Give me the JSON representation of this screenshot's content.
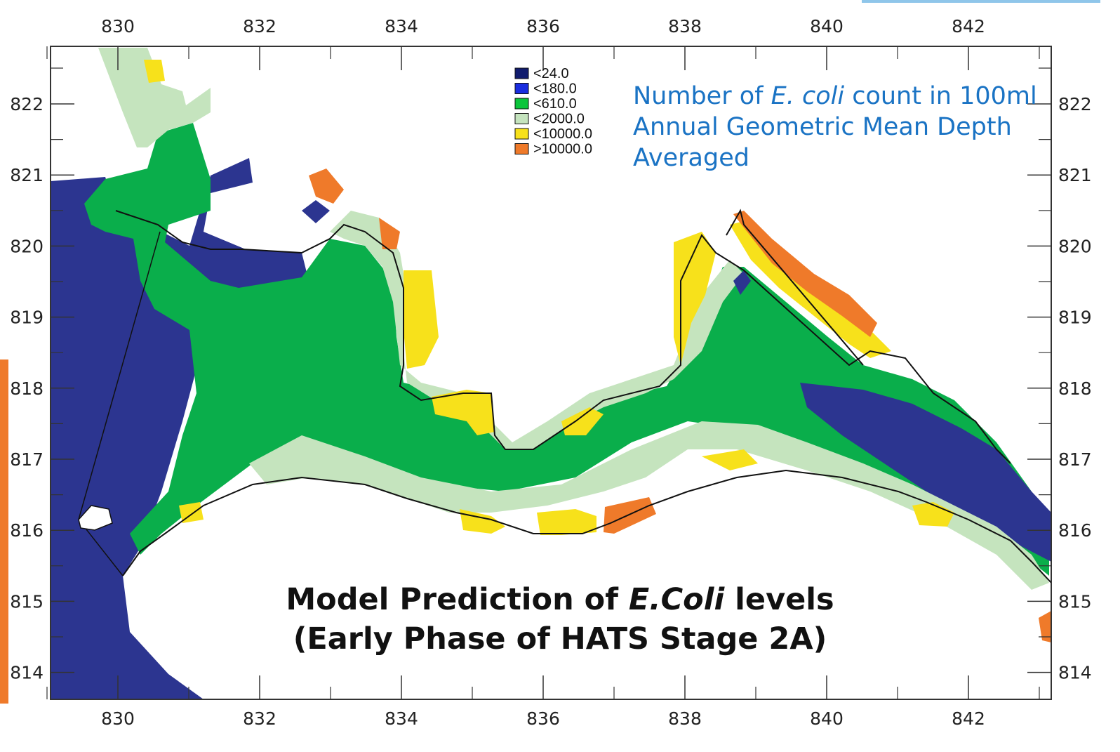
{
  "colors": {
    "deep_blue": "#2c3590",
    "green": "#0aae4b",
    "light_green": "#c5e4be",
    "yellow": "#f7e11b",
    "orange": "#ef7a2a",
    "note_blue": "#1a73c4"
  },
  "axes": {
    "x_ticks": [
      "830",
      "832",
      "834",
      "836",
      "838",
      "840",
      "842"
    ],
    "y_ticks": [
      "822",
      "821",
      "820",
      "819",
      "818",
      "817",
      "816",
      "815",
      "814"
    ]
  },
  "legend": [
    {
      "label": "<24.0",
      "color": "#111c6e"
    },
    {
      "label": "<180.0",
      "color": "#1a2de0"
    },
    {
      "label": "<610.0",
      "color": "#0bc53b"
    },
    {
      "label": "<2000.0",
      "color": "#c5e4be"
    },
    {
      "label": "<10000.0",
      "color": "#f7e11b"
    },
    {
      "label": ">10000.0",
      "color": "#ef7a2a"
    }
  ],
  "note": {
    "line1_prefix": "Number of ",
    "line1_italic": "E. coli",
    "line1_suffix": " count in 100ml",
    "line2": "Annual Geometric Mean Depth",
    "line3": "Averaged"
  },
  "caption": {
    "line1_prefix": "Model Prediction of ",
    "line1_italic": "E.Coli",
    "line1_suffix": " levels",
    "line2": "(Early Phase of HATS Stage 2A)"
  }
}
